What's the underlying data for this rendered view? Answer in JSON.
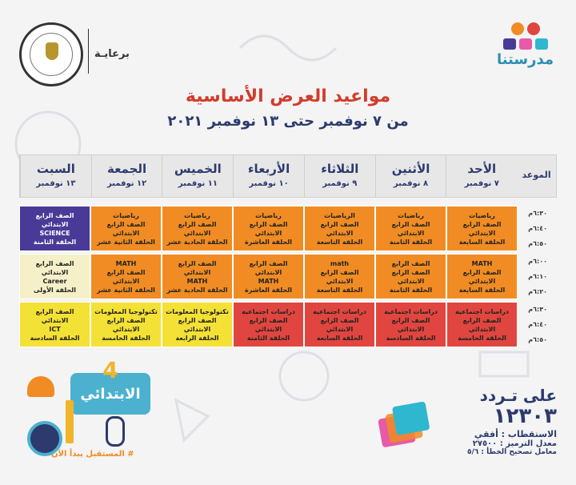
{
  "sponsor": {
    "label": "برعايـة"
  },
  "brand": {
    "name": "مدرستنا",
    "dot_colors": [
      "#f08c23",
      "#e0463f"
    ],
    "block_colors": [
      "#4a3a97",
      "#e85aa8",
      "#2fb7cf"
    ]
  },
  "title": "مواعيد العرض الأساسية",
  "subtitle": "من ٧ نوفمبر حتى ١٣ نوفمبر ٢٠٢١",
  "header": {
    "time_label": "الموعد",
    "days": [
      {
        "day": "الأحد",
        "date": "٧ نوفمبر"
      },
      {
        "day": "الأثنين",
        "date": "٨ نوفمبر"
      },
      {
        "day": "الثلاثاء",
        "date": "٩ نوفمبر"
      },
      {
        "day": "الأربعاء",
        "date": "١٠ نوفمبر"
      },
      {
        "day": "الخميس",
        "date": "١١ نوفمبر"
      },
      {
        "day": "الجمعة",
        "date": "١٢ نوفمبر"
      },
      {
        "day": "السبت",
        "date": "١٣ نوفمبر"
      }
    ]
  },
  "blocks": [
    {
      "times": [
        "٦:٣٠م",
        "٦:٤٠م",
        "٦:٥٠م"
      ],
      "cells": [
        {
          "color": "orange",
          "lines": [
            "رياضيات",
            "الصف الرابع الابتدائي",
            "الحلقة السابعة"
          ]
        },
        {
          "color": "orange",
          "lines": [
            "رياضيات",
            "الصف الرابع الابتدائي",
            "الحلقة الثامنة"
          ]
        },
        {
          "color": "orange",
          "lines": [
            "الرياضيات",
            "الصف الرابع الابتدائي",
            "الحلقة التاسعة"
          ]
        },
        {
          "color": "orange",
          "lines": [
            "رياضيات",
            "الصف الرابع الابتدائي",
            "الحلقة العاشرة"
          ]
        },
        {
          "color": "orange",
          "lines": [
            "رياضيات",
            "الصف الرابع الابتدائي",
            "الحلقة الحادية عشر"
          ]
        },
        {
          "color": "orange",
          "lines": [
            "رياضيات",
            "الصف الرابع الابتدائي",
            "الحلقة الثانية عشر"
          ]
        },
        {
          "color": "purple",
          "lines": [
            "الصف الرابع الابتدائي",
            "SCIENCE",
            "الحلقة الثامنة"
          ]
        }
      ]
    },
    {
      "times": [
        "٦:٠٠م",
        "٦:١٠م",
        "٦:٢٠م"
      ],
      "cells": [
        {
          "color": "orange",
          "lines": [
            "MATH",
            "الصف الرابع الابتدائي",
            "الحلقة السابعة"
          ]
        },
        {
          "color": "orange",
          "lines": [
            "الصف الرابع",
            "الصف الرابع الابتدائي",
            "الحلقة الثامنة"
          ]
        },
        {
          "color": "orange",
          "lines": [
            "math",
            "الصف الرابع الابتدائي",
            "الحلقة التاسعة"
          ]
        },
        {
          "color": "orange",
          "lines": [
            "الصف الرابع الابتدائي",
            "MATH",
            "الحلقة العاشرة"
          ]
        },
        {
          "color": "orange",
          "lines": [
            "الصف الرابع الابتدائي",
            "MATH",
            "الحلقة الحادية عشر"
          ]
        },
        {
          "color": "orange",
          "lines": [
            "MATH",
            "الصف الرابع الابتدائي",
            "الحلقة الثانية عشر"
          ]
        },
        {
          "color": "cream",
          "lines": [
            "الصف الرابع الابتدائي",
            "Career",
            "الحلقة الأولى"
          ]
        }
      ]
    },
    {
      "times": [
        "٦:٣٠م",
        "٦:٤٠م",
        "٦:٥٠م"
      ],
      "cells": [
        {
          "color": "red",
          "lines": [
            "دراسات اجتماعية",
            "الصف الرابع الابتدائي",
            "الحلقة الخامسة"
          ]
        },
        {
          "color": "red",
          "lines": [
            "دراسات اجتماعية",
            "الصف الرابع",
            "الابتدائي",
            "الحلقة السادسة"
          ]
        },
        {
          "color": "red",
          "lines": [
            "دراسات اجتماعية",
            "الصف الرابع الابتدائي",
            "الحلقة السابعة"
          ]
        },
        {
          "color": "red",
          "lines": [
            "دراسات اجتماعية",
            "الصف الرابع الابتدائي",
            "الحلقة الثامنة"
          ]
        },
        {
          "color": "yellow",
          "lines": [
            "تكنولوجيا المعلومات",
            "الصف الرابع الابتدائي",
            "الحلقة الرابعة"
          ]
        },
        {
          "color": "yellow",
          "lines": [
            "تكنولوجيا المعلومات",
            "الصف الرابع الابتدائي",
            "الحلقة الخامسة"
          ]
        },
        {
          "color": "yellow",
          "lines": [
            "الصف الرابع الابتدائي",
            "ICT",
            "الحلقة السادسة"
          ]
        }
      ]
    }
  ],
  "stage": {
    "number": "4",
    "label": "الابتدائي",
    "slogan": "# المستقبل يبدأ الآن"
  },
  "frequency": {
    "line1": "على تـردد",
    "line2": "١٢٣٠٣",
    "line3": "الاستقطاب : أفقي",
    "line4": "معدل الترميز : ٢٧٥٠٠",
    "line5": "معامل تصحيح الخطأ : ٥/٦"
  }
}
